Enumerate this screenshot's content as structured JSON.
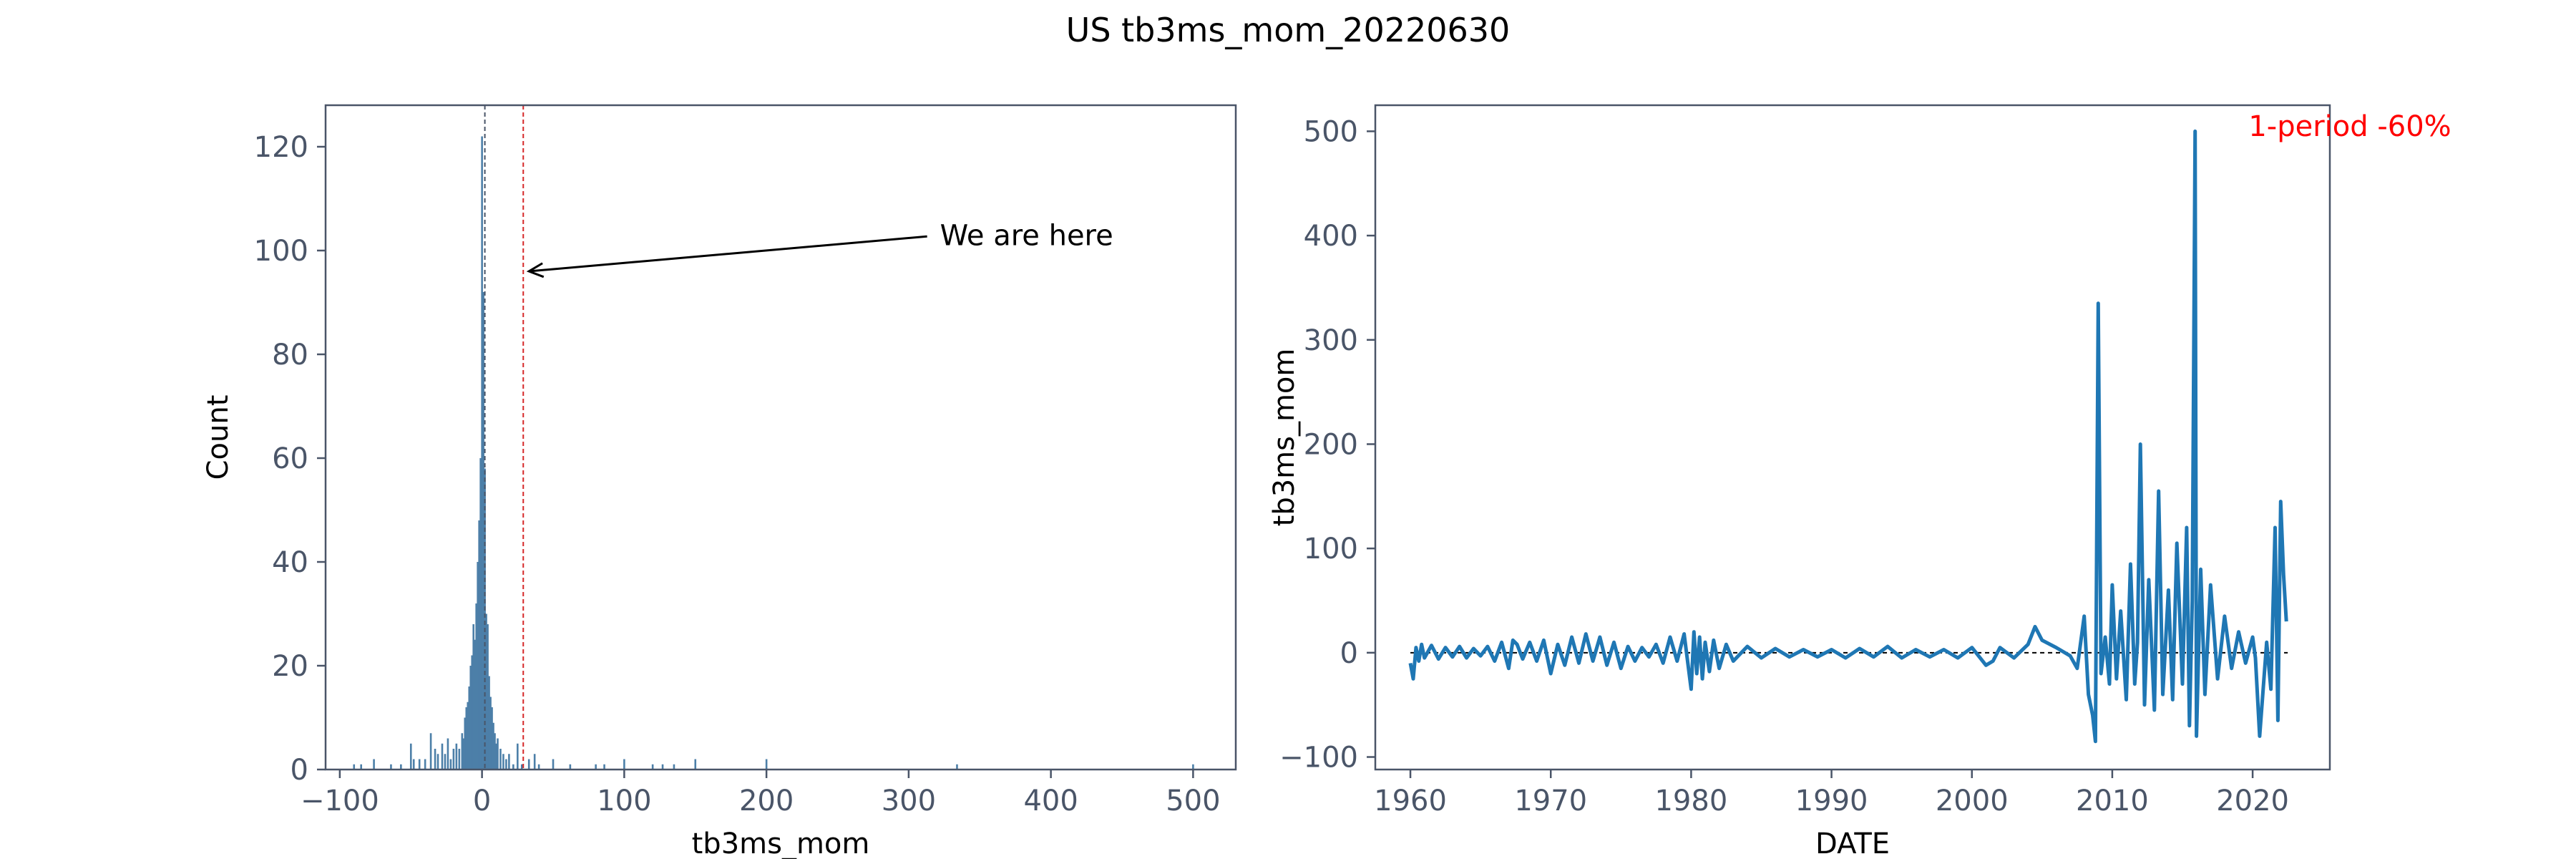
{
  "title": "US tb3ms_mom_20220630",
  "colors": {
    "hist_bar": "#4c7fa8",
    "line": "#1f77b4",
    "axes": "#4a5568",
    "tick_text": "#4a5568",
    "red_annotation": "#ff0000",
    "marker_red": "#d62728",
    "zero_line": "#000000"
  },
  "chart_data": [
    {
      "type": "bar",
      "kind": "histogram",
      "xlabel": "tb3ms_mom",
      "ylabel": "Count",
      "xlim": [
        -110,
        530
      ],
      "ylim": [
        0,
        128
      ],
      "xticks": [
        -100,
        0,
        100,
        200,
        300,
        400,
        500
      ],
      "yticks": [
        0,
        20,
        40,
        60,
        80,
        100,
        120
      ],
      "bin_width": 1.3,
      "bins": [
        {
          "x": -90,
          "count": 1
        },
        {
          "x": -85,
          "count": 1
        },
        {
          "x": -76,
          "count": 2
        },
        {
          "x": -64,
          "count": 1
        },
        {
          "x": -57,
          "count": 1
        },
        {
          "x": -50,
          "count": 5
        },
        {
          "x": -48,
          "count": 2
        },
        {
          "x": -44,
          "count": 2
        },
        {
          "x": -40,
          "count": 2
        },
        {
          "x": -36,
          "count": 7
        },
        {
          "x": -33,
          "count": 4
        },
        {
          "x": -31,
          "count": 3
        },
        {
          "x": -28,
          "count": 5
        },
        {
          "x": -26,
          "count": 3
        },
        {
          "x": -24,
          "count": 6
        },
        {
          "x": -22,
          "count": 2
        },
        {
          "x": -20,
          "count": 4
        },
        {
          "x": -18,
          "count": 5
        },
        {
          "x": -16,
          "count": 4
        },
        {
          "x": -14,
          "count": 7
        },
        {
          "x": -13,
          "count": 6
        },
        {
          "x": -12,
          "count": 10
        },
        {
          "x": -11,
          "count": 12
        },
        {
          "x": -10,
          "count": 13
        },
        {
          "x": -9,
          "count": 16
        },
        {
          "x": -8,
          "count": 20
        },
        {
          "x": -7,
          "count": 22
        },
        {
          "x": -6,
          "count": 28
        },
        {
          "x": -5,
          "count": 25
        },
        {
          "x": -4,
          "count": 32
        },
        {
          "x": -3,
          "count": 40
        },
        {
          "x": -2,
          "count": 48
        },
        {
          "x": -1,
          "count": 60
        },
        {
          "x": 0,
          "count": 122
        },
        {
          "x": 1,
          "count": 92
        },
        {
          "x": 2,
          "count": 58
        },
        {
          "x": 3,
          "count": 30
        },
        {
          "x": 4,
          "count": 28
        },
        {
          "x": 5,
          "count": 18
        },
        {
          "x": 6,
          "count": 14
        },
        {
          "x": 7,
          "count": 12
        },
        {
          "x": 8,
          "count": 9
        },
        {
          "x": 9,
          "count": 7
        },
        {
          "x": 10,
          "count": 5
        },
        {
          "x": 11,
          "count": 6
        },
        {
          "x": 13,
          "count": 4
        },
        {
          "x": 15,
          "count": 3
        },
        {
          "x": 17,
          "count": 2
        },
        {
          "x": 19,
          "count": 3
        },
        {
          "x": 22,
          "count": 1
        },
        {
          "x": 25,
          "count": 5
        },
        {
          "x": 28,
          "count": 1
        },
        {
          "x": 33,
          "count": 2
        },
        {
          "x": 37,
          "count": 3
        },
        {
          "x": 40,
          "count": 1
        },
        {
          "x": 50,
          "count": 2
        },
        {
          "x": 62,
          "count": 1
        },
        {
          "x": 80,
          "count": 1
        },
        {
          "x": 86,
          "count": 1
        },
        {
          "x": 100,
          "count": 2
        },
        {
          "x": 120,
          "count": 1
        },
        {
          "x": 127,
          "count": 1
        },
        {
          "x": 135,
          "count": 1
        },
        {
          "x": 150,
          "count": 2
        },
        {
          "x": 200,
          "count": 2
        },
        {
          "x": 334,
          "count": 1
        },
        {
          "x": 500,
          "count": 1
        }
      ],
      "vlines": [
        {
          "x": 2,
          "color": "#4a5568",
          "style": "dashed"
        },
        {
          "x": 29,
          "color": "#d62728",
          "style": "dashed"
        }
      ],
      "annotation": {
        "text": "We are here",
        "text_x": 317,
        "text_y": 103,
        "arrow_to_x": 33,
        "arrow_to_y": 96
      }
    },
    {
      "type": "line",
      "xlabel": "DATE",
      "ylabel": "tb3ms_mom",
      "xlim": [
        1957.5,
        2025.5
      ],
      "ylim": [
        -112,
        525
      ],
      "xticks": [
        1960,
        1970,
        1980,
        1990,
        2000,
        2010,
        2020
      ],
      "yticks": [
        -100,
        0,
        100,
        200,
        300,
        400,
        500
      ],
      "corner_note": "1-period -60%",
      "zero_line": {
        "y": 0,
        "from": 1960,
        "to": 2022.5
      },
      "series": [
        {
          "x": [
            1960.0,
            1960.2,
            1960.4,
            1960.6,
            1960.8,
            1961.0,
            1961.5,
            1962.0,
            1962.5,
            1963.0,
            1963.5,
            1964.0,
            1964.5,
            1965.0,
            1965.5,
            1966.0,
            1966.5,
            1967.0,
            1967.3,
            1967.6,
            1968.0,
            1968.5,
            1969.0,
            1969.5,
            1970.0,
            1970.5,
            1971.0,
            1971.5,
            1972.0,
            1972.5,
            1973.0,
            1973.5,
            1974.0,
            1974.5,
            1975.0,
            1975.5,
            1976.0,
            1976.5,
            1977.0,
            1977.5,
            1978.0,
            1978.5,
            1979.0,
            1979.5,
            1980.0,
            1980.2,
            1980.4,
            1980.6,
            1980.8,
            1981.0,
            1981.3,
            1981.6,
            1982.0,
            1982.5,
            1983.0,
            1984.0,
            1985.0,
            1986.0,
            1987.0,
            1988.0,
            1989.0,
            1990.0,
            1991.0,
            1992.0,
            1993.0,
            1994.0,
            1995.0,
            1996.0,
            1997.0,
            1998.0,
            1999.0,
            2000.0,
            2001.0,
            2001.5,
            2002.0,
            2003.0,
            2004.0,
            2004.5,
            2005.0,
            2006.0,
            2007.0,
            2007.5,
            2008.0,
            2008.3,
            2008.6,
            2008.8,
            2009.0,
            2009.2,
            2009.5,
            2009.8,
            2010.0,
            2010.3,
            2010.6,
            2011.0,
            2011.3,
            2011.6,
            2011.8,
            2012.0,
            2012.3,
            2012.6,
            2013.0,
            2013.3,
            2013.6,
            2014.0,
            2014.3,
            2014.6,
            2015.0,
            2015.3,
            2015.5,
            2015.7,
            2015.9,
            2016.0,
            2016.3,
            2016.6,
            2017.0,
            2017.5,
            2018.0,
            2018.5,
            2019.0,
            2019.5,
            2020.0,
            2020.2,
            2020.5,
            2021.0,
            2021.3,
            2021.6,
            2021.8,
            2022.0,
            2022.2,
            2022.4
          ],
          "y": [
            -10,
            -25,
            5,
            -8,
            8,
            -5,
            7,
            -6,
            5,
            -4,
            6,
            -5,
            4,
            -3,
            6,
            -8,
            10,
            -15,
            12,
            8,
            -6,
            10,
            -8,
            12,
            -20,
            8,
            -12,
            15,
            -10,
            18,
            -8,
            15,
            -12,
            10,
            -15,
            6,
            -8,
            5,
            -4,
            8,
            -10,
            15,
            -8,
            18,
            -35,
            20,
            -20,
            15,
            -25,
            10,
            -18,
            12,
            -15,
            8,
            -8,
            6,
            -5,
            4,
            -4,
            3,
            -4,
            3,
            -5,
            4,
            -4,
            6,
            -5,
            3,
            -4,
            3,
            -5,
            5,
            -12,
            -8,
            5,
            -5,
            8,
            25,
            12,
            5,
            -3,
            -15,
            35,
            -40,
            -60,
            -85,
            335,
            -20,
            15,
            -30,
            65,
            -25,
            40,
            -45,
            85,
            -30,
            10,
            200,
            -50,
            70,
            -55,
            155,
            -40,
            60,
            -45,
            105,
            -30,
            120,
            -70,
            50,
            500,
            -80,
            80,
            -40,
            65,
            -25,
            35,
            -15,
            20,
            -10,
            15,
            -5,
            -80,
            10,
            -35,
            120,
            -65,
            145,
            75,
            30
          ]
        }
      ]
    }
  ]
}
